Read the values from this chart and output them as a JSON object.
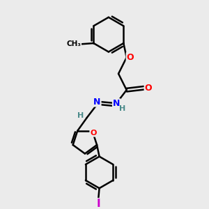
{
  "background_color": "#ebebeb",
  "bond_color": "#000000",
  "atom_colors": {
    "O": "#ff0000",
    "N": "#0000ff",
    "I": "#cc00cc",
    "C": "#000000",
    "H": "#4a8a8a"
  },
  "bond_width": 1.8,
  "dbo": 0.08,
  "figsize": [
    3.0,
    3.0
  ],
  "dpi": 100,
  "xlim": [
    0,
    10
  ],
  "ylim": [
    0,
    10
  ]
}
